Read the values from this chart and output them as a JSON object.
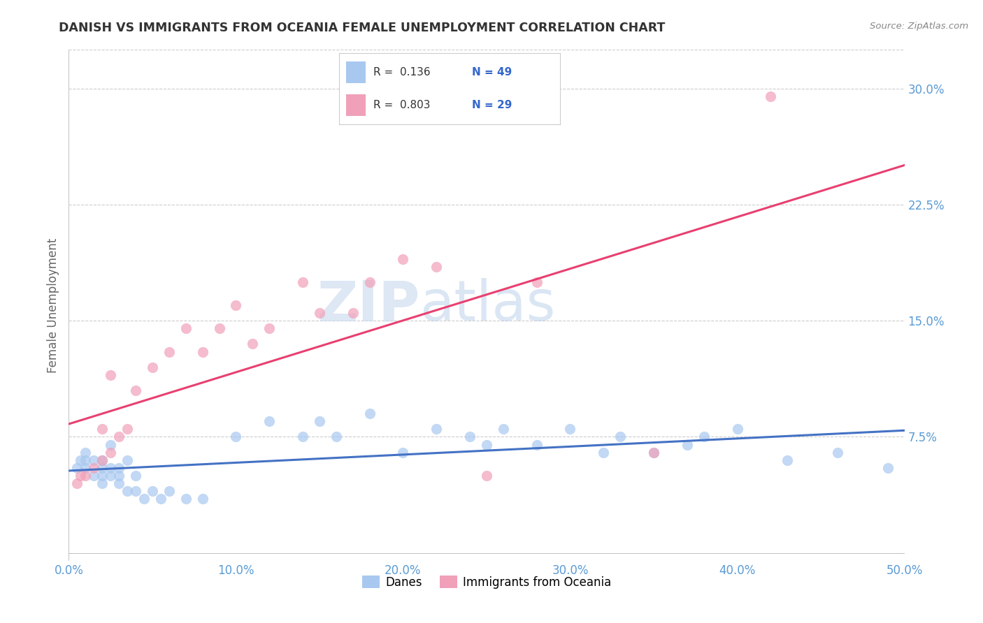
{
  "title": "DANISH VS IMMIGRANTS FROM OCEANIA FEMALE UNEMPLOYMENT CORRELATION CHART",
  "source_text": "Source: ZipAtlas.com",
  "ylabel": "Female Unemployment",
  "x_min": 0.0,
  "x_max": 0.5,
  "y_min": -0.005,
  "y_max": 0.325,
  "x_ticks": [
    0.0,
    0.1,
    0.2,
    0.3,
    0.4,
    0.5
  ],
  "x_tick_labels": [
    "0.0%",
    "10.0%",
    "20.0%",
    "30.0%",
    "40.0%",
    "50.0%"
  ],
  "y_ticks": [
    0.075,
    0.15,
    0.225,
    0.3
  ],
  "y_tick_labels": [
    "7.5%",
    "15.0%",
    "22.5%",
    "30.0%"
  ],
  "grid_color": "#cccccc",
  "background_color": "#ffffff",
  "series1_color": "#a8c8f0",
  "series2_color": "#f0a0b8",
  "series1_label": "Danes",
  "series2_label": "Immigrants from Oceania",
  "series1_R": "0.136",
  "series1_N": "49",
  "series2_R": "0.803",
  "series2_N": "29",
  "legend_N_color": "#3366cc",
  "title_color": "#333333",
  "axis_tick_color": "#5b9bd5",
  "watermark_zip": "ZIP",
  "watermark_atlas": "atlas",
  "danes_x": [
    0.005,
    0.007,
    0.01,
    0.01,
    0.01,
    0.015,
    0.015,
    0.02,
    0.02,
    0.02,
    0.02,
    0.025,
    0.025,
    0.025,
    0.03,
    0.03,
    0.03,
    0.035,
    0.035,
    0.04,
    0.04,
    0.045,
    0.05,
    0.055,
    0.06,
    0.07,
    0.08,
    0.1,
    0.12,
    0.14,
    0.15,
    0.16,
    0.18,
    0.2,
    0.22,
    0.24,
    0.25,
    0.26,
    0.28,
    0.3,
    0.32,
    0.33,
    0.35,
    0.37,
    0.38,
    0.4,
    0.43,
    0.46,
    0.49
  ],
  "danes_y": [
    0.055,
    0.06,
    0.055,
    0.06,
    0.065,
    0.05,
    0.06,
    0.045,
    0.05,
    0.055,
    0.06,
    0.05,
    0.055,
    0.07,
    0.045,
    0.05,
    0.055,
    0.04,
    0.06,
    0.04,
    0.05,
    0.035,
    0.04,
    0.035,
    0.04,
    0.035,
    0.035,
    0.075,
    0.085,
    0.075,
    0.085,
    0.075,
    0.09,
    0.065,
    0.08,
    0.075,
    0.07,
    0.08,
    0.07,
    0.08,
    0.065,
    0.075,
    0.065,
    0.07,
    0.075,
    0.08,
    0.06,
    0.065,
    0.055
  ],
  "oceania_x": [
    0.005,
    0.007,
    0.01,
    0.015,
    0.02,
    0.02,
    0.025,
    0.025,
    0.03,
    0.035,
    0.04,
    0.05,
    0.06,
    0.07,
    0.08,
    0.09,
    0.1,
    0.11,
    0.12,
    0.14,
    0.15,
    0.17,
    0.18,
    0.2,
    0.22,
    0.25,
    0.28,
    0.35,
    0.42
  ],
  "oceania_y": [
    0.045,
    0.05,
    0.05,
    0.055,
    0.06,
    0.08,
    0.065,
    0.115,
    0.075,
    0.08,
    0.105,
    0.12,
    0.13,
    0.145,
    0.13,
    0.145,
    0.16,
    0.135,
    0.145,
    0.175,
    0.155,
    0.155,
    0.175,
    0.19,
    0.185,
    0.05,
    0.175,
    0.065,
    0.295
  ]
}
